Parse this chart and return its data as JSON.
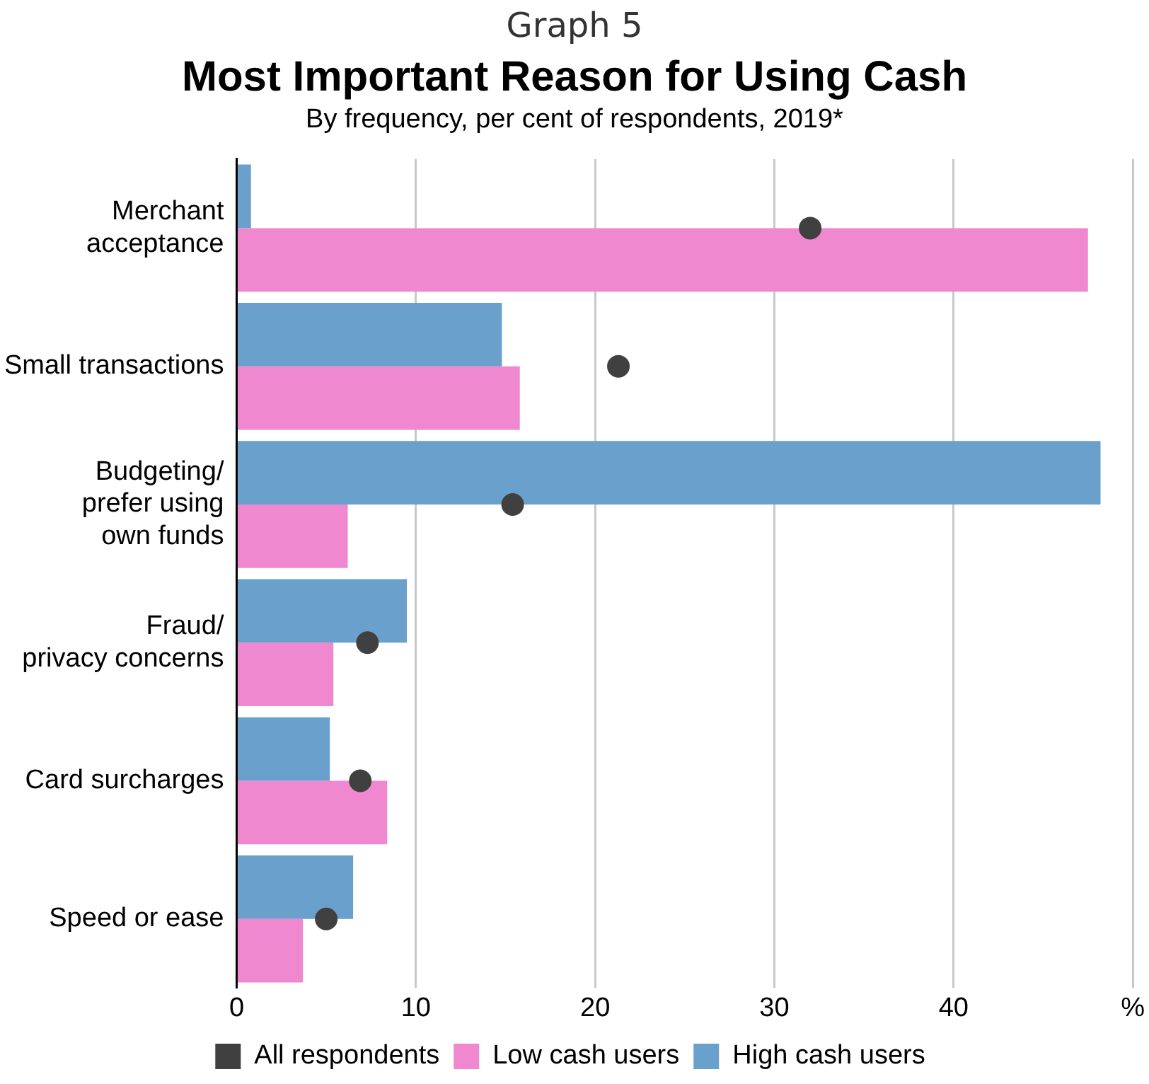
{
  "chart_data": {
    "type": "bar",
    "orientation": "horizontal",
    "title": "Most Important Reason for Using Cash",
    "subtitle": "By frequency, per cent of respondents, 2019*",
    "annotations": [
      "Graph 5"
    ],
    "categories": [
      "Merchant\nacceptance",
      "Small transactions",
      "Budgeting/\nprefer using\nown funds",
      "Fraud/\nprivacy concerns",
      "Card surcharges",
      "Speed or ease"
    ],
    "series": [
      {
        "name": "All respondents",
        "type": "scatter",
        "color": "#404040",
        "values": [
          32,
          21.3,
          15.4,
          7.3,
          6.9,
          5.0
        ]
      },
      {
        "name": "Low cash users",
        "color": "#f088d0",
        "values": [
          47.5,
          15.8,
          6.2,
          5.4,
          8.4,
          3.7
        ]
      },
      {
        "name": "High cash users",
        "color": "#6aa0cc",
        "values": [
          0.8,
          14.8,
          48.2,
          9.5,
          5.2,
          6.5
        ]
      }
    ],
    "xlim": [
      0,
      50
    ],
    "xticks": [
      0,
      10,
      20,
      30,
      40,
      {
        "value": 50,
        "label": "%"
      }
    ],
    "grid": "x",
    "legend": "bottom",
    "marker": "circle"
  }
}
